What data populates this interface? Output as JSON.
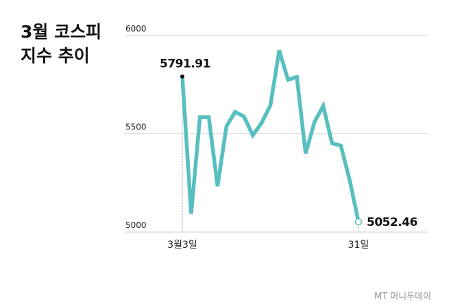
{
  "chart_data": {
    "type": "line",
    "title_lines": [
      "3월 코스피",
      "지수 추이"
    ],
    "y_ticks": [
      "6000",
      "5500",
      "5000"
    ],
    "y_tick_values": [
      6000,
      5500,
      5000
    ],
    "ylim": [
      5000,
      6000
    ],
    "x_tick_labels": [
      "3월3일",
      "31일"
    ],
    "grid": true,
    "series": [
      {
        "values": [
          5791.91,
          5093,
          5585,
          5585,
          5233,
          5538,
          5612,
          5588,
          5493,
          5555,
          5645,
          5925,
          5775,
          5790,
          5400,
          5560,
          5642,
          5452,
          5440,
          5265,
          5052.46
        ],
        "color": "#57BFBF"
      }
    ],
    "annotations": [
      {
        "label": "5791.91",
        "index": 0,
        "marker": "filled-dot"
      },
      {
        "label": "5052.46",
        "index": 20,
        "marker": "hollow-dot"
      }
    ]
  },
  "watermark": "MT 머니투데이"
}
